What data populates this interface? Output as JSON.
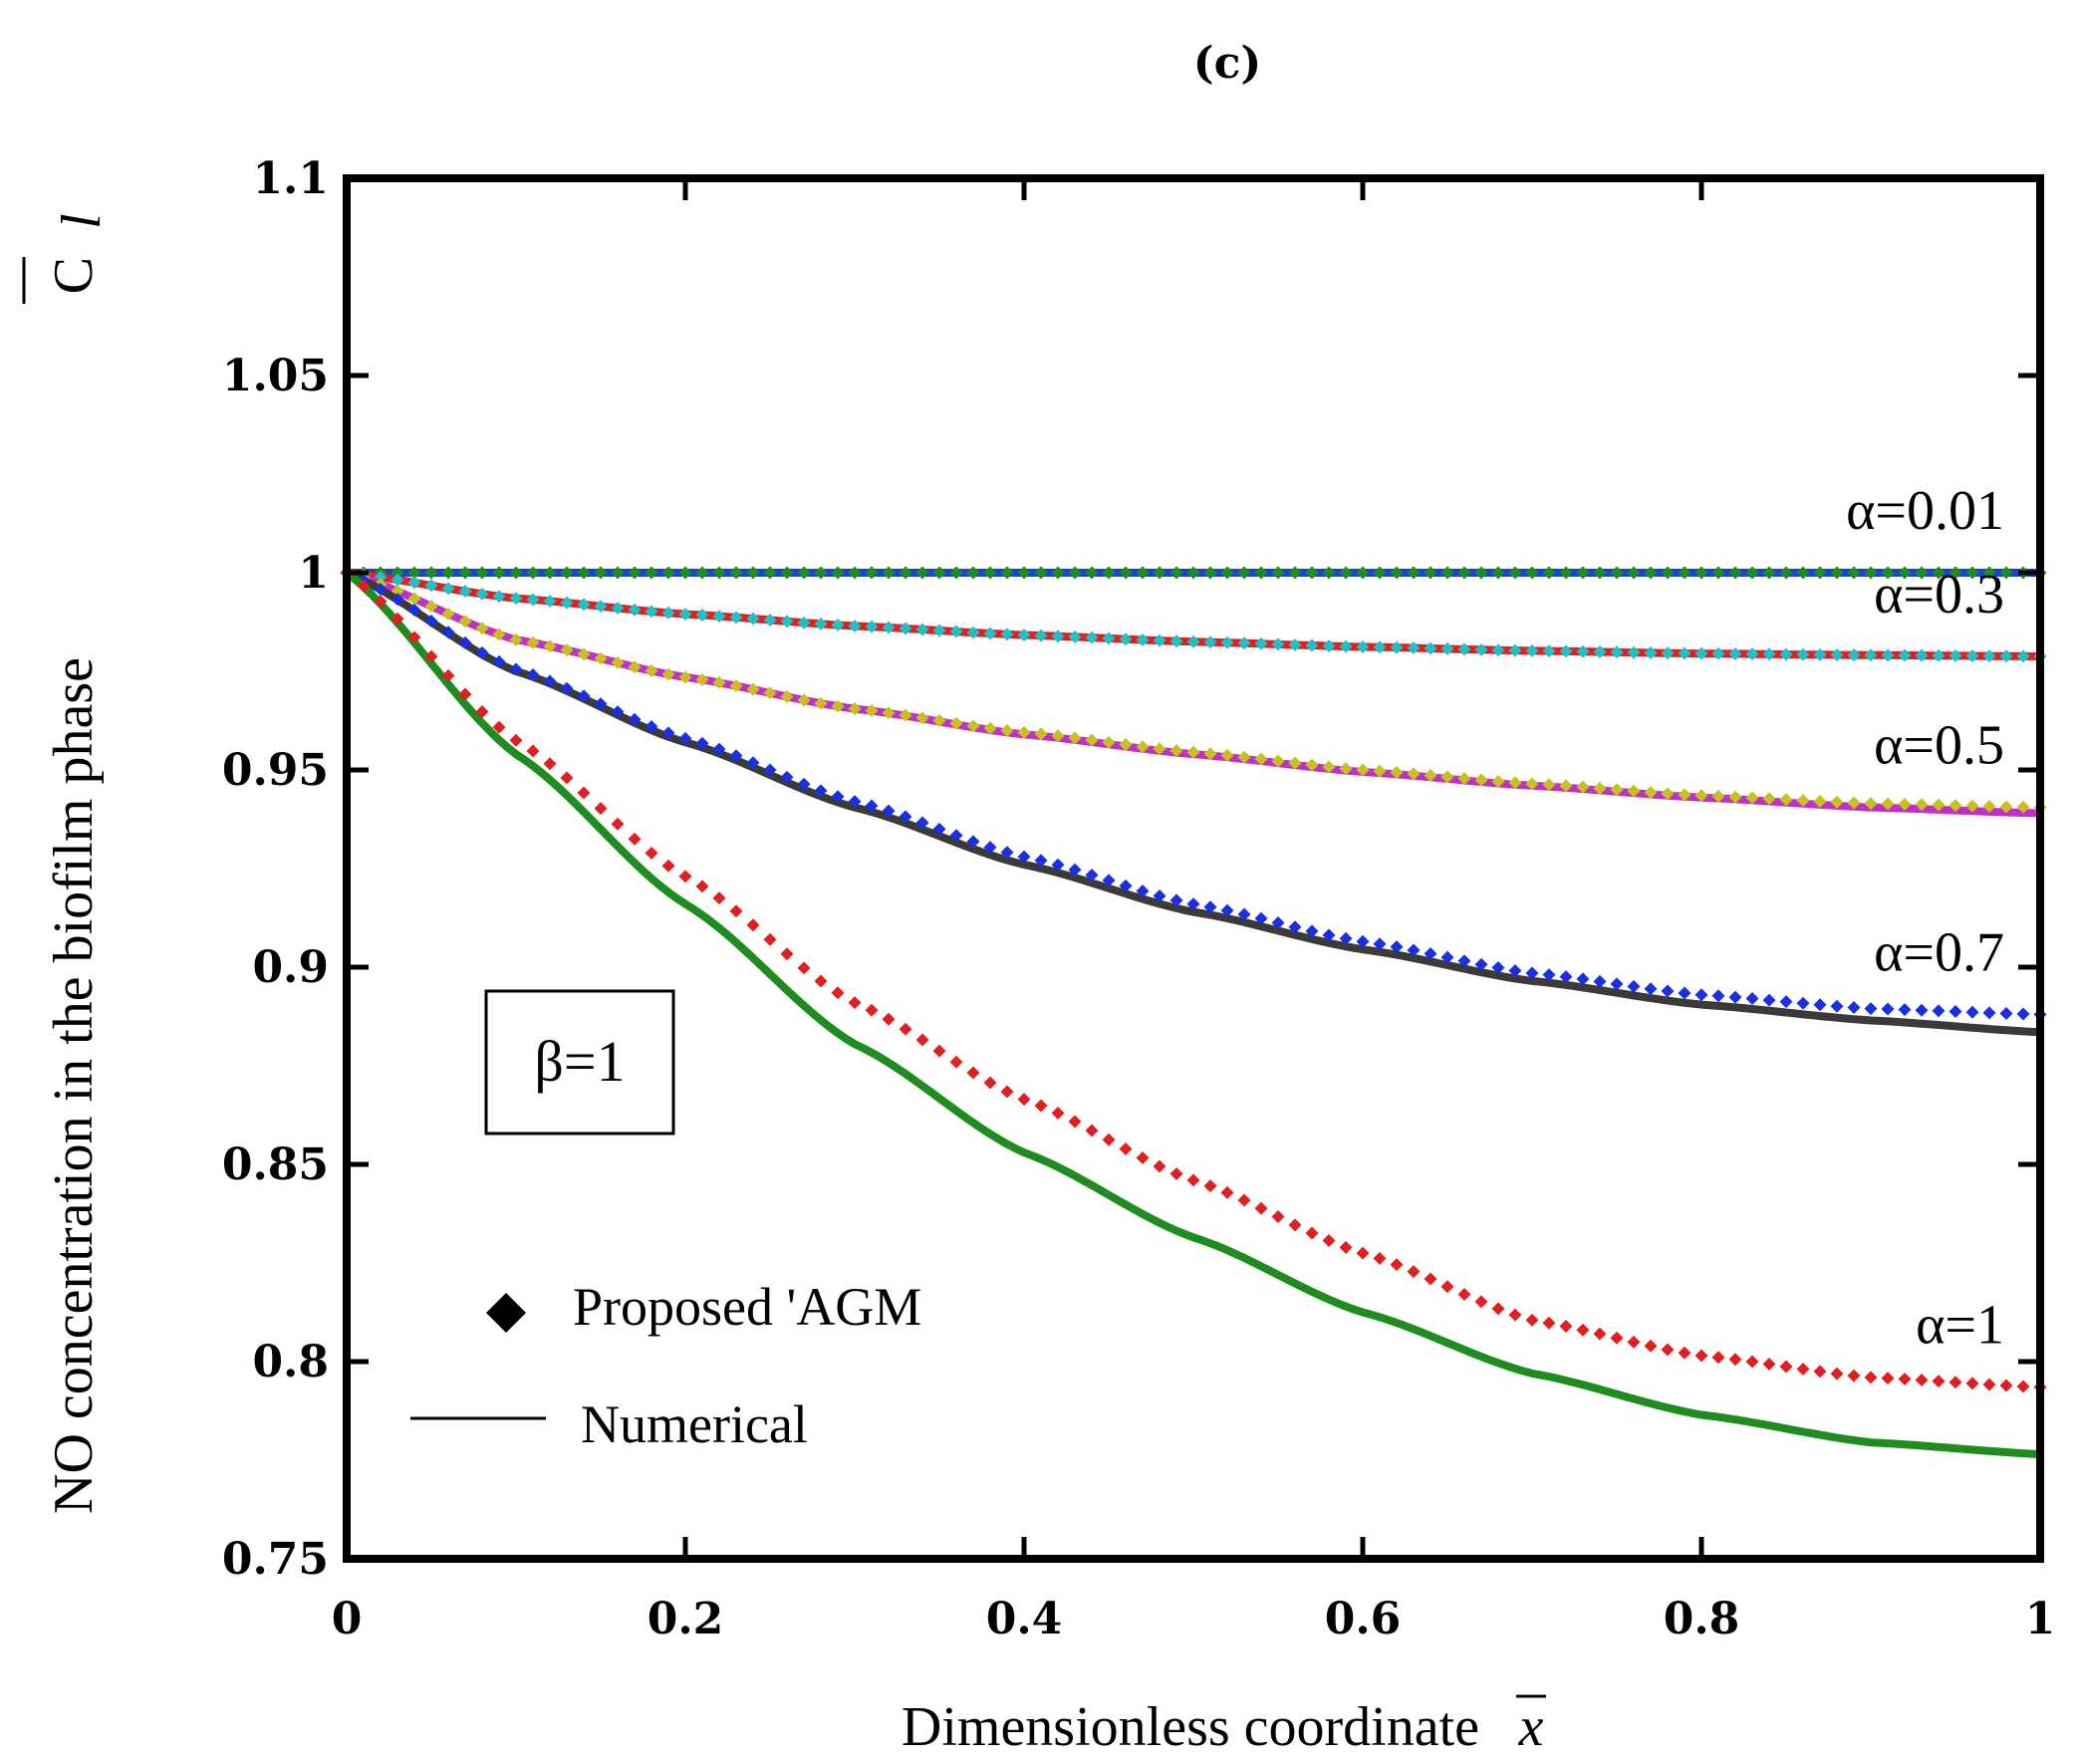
{
  "chart_data": {
    "type": "line",
    "panel_label": "(c)",
    "xlabel": "Dimensionless coordinate",
    "xlabel_symbol": "x",
    "ylabel": "NO concentration in the biofilm phase",
    "ylabel_symbol": "C",
    "ylabel_subscript": "l",
    "xlim": [
      0,
      1
    ],
    "ylim": [
      0.75,
      1.1
    ],
    "xticks": [
      0,
      0.2,
      0.4,
      0.6,
      0.8,
      1
    ],
    "xtick_labels": [
      "0",
      "0.2",
      "0.4",
      "0.6",
      "0.8",
      "1"
    ],
    "yticks": [
      0.75,
      0.8,
      0.85,
      0.9,
      0.95,
      1,
      1.05,
      1.1
    ],
    "ytick_labels": [
      "0.75",
      "0.8",
      "0.85",
      "0.9",
      "0.95",
      "1",
      "1.05",
      "1.1"
    ],
    "grid": false,
    "parameter_box": "β=1",
    "legend": [
      {
        "label": "Proposed 'AGM",
        "marker": "diamond"
      },
      {
        "label": "Numerical",
        "marker": "line"
      }
    ],
    "x": [
      0,
      0.1,
      0.2,
      0.3,
      0.4,
      0.5,
      0.6,
      0.7,
      0.8,
      0.9,
      1.0
    ],
    "series": [
      {
        "alpha_label": "α=0.01",
        "numerical_color": "#1e3fd8",
        "agm_color": "#1e8c1e",
        "numerical": [
          1,
          1,
          1,
          1,
          1,
          1,
          1,
          1,
          1,
          1,
          1
        ],
        "agm": [
          1,
          1,
          1,
          1,
          1,
          1,
          1,
          1,
          1,
          1,
          1
        ]
      },
      {
        "alpha_label": "α=0.3",
        "numerical_color": "#e02020",
        "agm_color": "#20c0c8",
        "numerical": [
          1,
          0.9935,
          0.9895,
          0.9865,
          0.9842,
          0.9825,
          0.9812,
          0.9802,
          0.9795,
          0.9791,
          0.9788
        ],
        "agm": [
          1,
          0.9935,
          0.9895,
          0.9865,
          0.9842,
          0.9825,
          0.9812,
          0.9802,
          0.9795,
          0.9791,
          0.9788
        ]
      },
      {
        "alpha_label": "α=0.5",
        "numerical_color": "#c030c8",
        "agm_color": "#c8c020",
        "numerical": [
          1,
          0.983,
          0.9735,
          0.9655,
          0.959,
          0.954,
          0.9495,
          0.946,
          0.943,
          0.9405,
          0.939
        ],
        "agm": [
          1,
          0.983,
          0.9735,
          0.9655,
          0.9595,
          0.9545,
          0.95,
          0.9465,
          0.9435,
          0.9415,
          0.9405
        ]
      },
      {
        "alpha_label": "α=0.7",
        "numerical_color": "#3a3a3a",
        "agm_color": "#1a2fe0",
        "numerical": [
          1,
          0.975,
          0.957,
          0.9405,
          0.926,
          0.914,
          0.9045,
          0.8965,
          0.8905,
          0.8865,
          0.8835
        ],
        "agm": [
          1,
          0.9755,
          0.958,
          0.942,
          0.928,
          0.916,
          0.9065,
          0.8985,
          0.893,
          0.8895,
          0.888
        ]
      },
      {
        "alpha_label": "α=1",
        "numerical_color": "#1e8c1e",
        "agm_color": "#e02020",
        "numerical": [
          1,
          0.954,
          0.916,
          0.8805,
          0.853,
          0.8315,
          0.8125,
          0.797,
          0.7865,
          0.7795,
          0.7765
        ],
        "agm": [
          1,
          0.9575,
          0.923,
          0.891,
          0.8665,
          0.846,
          0.8275,
          0.8105,
          0.8015,
          0.796,
          0.7935
        ]
      }
    ]
  }
}
